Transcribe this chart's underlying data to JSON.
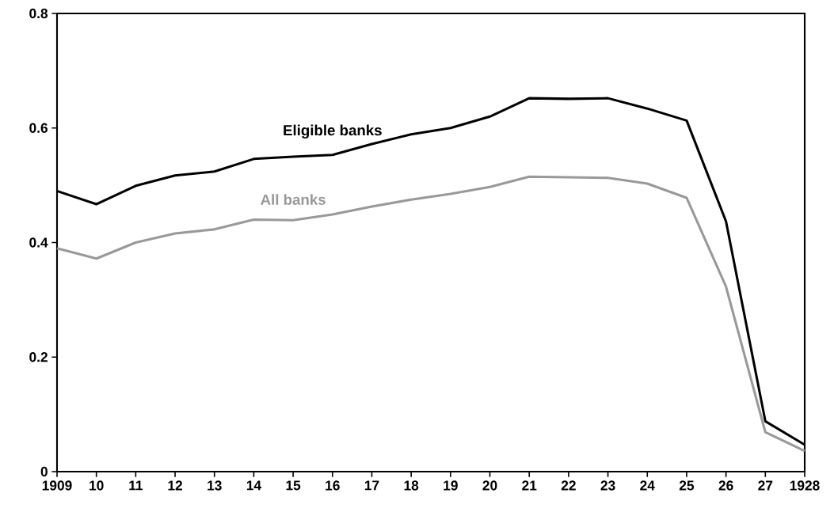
{
  "chart_data": {
    "type": "line",
    "categories": [
      "1909",
      "10",
      "11",
      "12",
      "13",
      "14",
      "15",
      "16",
      "17",
      "18",
      "19",
      "20",
      "21",
      "22",
      "23",
      "24",
      "25",
      "26",
      "27",
      "1928"
    ],
    "series": [
      {
        "name": "Eligible banks",
        "color": "#000000",
        "values": [
          0.49,
          0.467,
          0.499,
          0.517,
          0.524,
          0.546,
          0.55,
          0.553,
          0.572,
          0.589,
          0.6,
          0.62,
          0.652,
          0.651,
          0.652,
          0.634,
          0.613,
          0.437,
          0.088,
          0.047
        ]
      },
      {
        "name": "All banks",
        "color": "#999999",
        "values": [
          0.39,
          0.372,
          0.4,
          0.416,
          0.423,
          0.44,
          0.439,
          0.449,
          0.463,
          0.475,
          0.485,
          0.497,
          0.515,
          0.514,
          0.513,
          0.503,
          0.478,
          0.323,
          0.069,
          0.036
        ]
      }
    ],
    "ylim": [
      0,
      0.8
    ],
    "yticks": [
      0,
      0.2,
      0.4,
      0.6,
      0.8
    ],
    "grid": false,
    "legend": false,
    "marker": "none",
    "line_style": "solid"
  }
}
